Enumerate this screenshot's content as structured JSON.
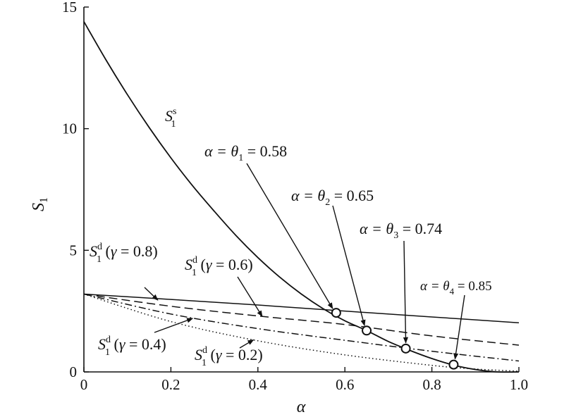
{
  "chart_data": {
    "type": "line",
    "xlabel": "α",
    "ylabel": "S1",
    "xlim": [
      0,
      1.0
    ],
    "ylim": [
      0,
      15
    ],
    "x_ticks": [
      "0",
      "0.2",
      "0.4",
      "0.6",
      "0.8",
      "1.0"
    ],
    "y_ticks": [
      "0",
      "5",
      "10",
      "15"
    ],
    "grid": false,
    "colors": {
      "line": "#111111",
      "axis": "#111111"
    },
    "series": [
      {
        "name": "S1s",
        "style": "solid",
        "x": [
          0,
          0.05,
          0.1,
          0.15,
          0.2,
          0.25,
          0.3,
          0.35,
          0.4,
          0.45,
          0.5,
          0.55,
          0.6,
          0.65,
          0.7,
          0.75,
          0.8,
          0.85,
          0.9,
          0.95,
          1.0
        ],
        "y": [
          14.4,
          12.85,
          11.4,
          10.05,
          8.8,
          7.65,
          6.6,
          5.6,
          4.7,
          3.9,
          3.2,
          2.6,
          2.1,
          1.7,
          1.25,
          0.88,
          0.55,
          0.28,
          0.1,
          0.0,
          0.0
        ]
      },
      {
        "name": "S1d (γ = 0.8)",
        "style": "solid",
        "x": [
          0,
          0.2,
          0.4,
          0.6,
          0.8,
          1.0
        ],
        "y": [
          3.2,
          2.98,
          2.75,
          2.5,
          2.26,
          2.02
        ]
      },
      {
        "name": "S1d (γ = 0.6)",
        "style": "dashed",
        "x": [
          0,
          0.2,
          0.4,
          0.6,
          0.8,
          1.0
        ],
        "y": [
          3.2,
          2.7,
          2.3,
          1.95,
          1.48,
          1.1
        ]
      },
      {
        "name": "S1d (γ = 0.4)",
        "style": "dashdot",
        "x": [
          0,
          0.2,
          0.4,
          0.6,
          0.8,
          1.0
        ],
        "y": [
          3.2,
          2.38,
          1.78,
          1.3,
          0.85,
          0.45
        ]
      },
      {
        "name": "S1d (γ = 0.2)",
        "style": "dotted",
        "x": [
          0,
          0.2,
          0.4,
          0.6,
          0.8,
          0.9,
          1.0
        ],
        "y": [
          3.2,
          2.07,
          1.28,
          0.7,
          0.27,
          0.12,
          0.03
        ]
      }
    ],
    "markers": [
      {
        "x": 0.58,
        "y": 2.43
      },
      {
        "x": 0.65,
        "y": 1.7
      },
      {
        "x": 0.74,
        "y": 0.96
      },
      {
        "x": 0.85,
        "y": 0.3
      }
    ],
    "annotations": {
      "s1s": {
        "main": "S",
        "sub": "1",
        "sup": "s"
      },
      "theta": [
        {
          "prefix": "α = ",
          "sym": "θ",
          "sub": "1",
          "value": " = 0.58"
        },
        {
          "prefix": "α = ",
          "sym": "θ",
          "sub": "2",
          "value": " = 0.65"
        },
        {
          "prefix": "α = ",
          "sym": "θ",
          "sub": "3",
          "value": " = 0.74"
        },
        {
          "prefix": "α = ",
          "sym": "θ",
          "sub": "4",
          "value": " = 0.85"
        }
      ],
      "gamma": [
        {
          "main": "S",
          "sub": "1",
          "sup": "d",
          "open": " (",
          "sym": "γ",
          "value": " = 0.8)"
        },
        {
          "main": "S",
          "sub": "1",
          "sup": "d",
          "open": " (",
          "sym": "γ",
          "value": " = 0.6)"
        },
        {
          "main": "S",
          "sub": "1",
          "sup": "d",
          "open": " (",
          "sym": "γ",
          "value": " = 0.4)"
        },
        {
          "main": "S",
          "sub": "1",
          "sup": "d",
          "open": " (",
          "sym": "γ",
          "value": " = 0.2)"
        }
      ]
    }
  }
}
